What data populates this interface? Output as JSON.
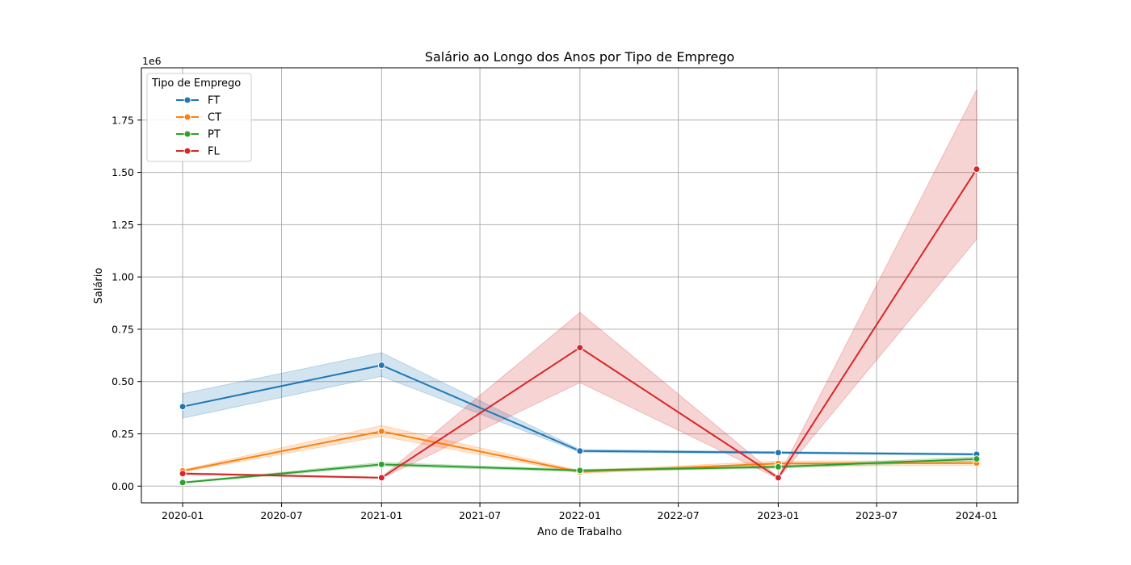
{
  "chart_data": {
    "type": "line",
    "title": "Salário ao Longo dos Anos por Tipo de Emprego",
    "xlabel": "Ano de Trabalho",
    "ylabel": "Salário",
    "y_offset_label": "1e6",
    "x": [
      "2020-01-01",
      "2021-01-01",
      "2022-01-01",
      "2023-01-01",
      "2024-01-01"
    ],
    "x_ticks": [
      "2020-01",
      "2020-07",
      "2021-01",
      "2021-07",
      "2022-01",
      "2022-07",
      "2023-01",
      "2023-07",
      "2024-01"
    ],
    "y_ticks": [
      "0.00",
      "0.25",
      "0.50",
      "0.75",
      "1.00",
      "1.25",
      "1.50",
      "1.75"
    ],
    "ylim": [
      -80000,
      2000000
    ],
    "xlim": [
      "2019-10-17",
      "2024-03-17"
    ],
    "grid": true,
    "legend": {
      "title": "Tipo de Emprego",
      "placement": "top-left"
    },
    "series": [
      {
        "name": "FT",
        "color": "#1f77b4",
        "values": [
          380000,
          578000,
          168000,
          160000,
          152000
        ],
        "ci_low": [
          325000,
          525000,
          162000,
          156000,
          148000
        ],
        "ci_high": [
          442000,
          638000,
          175000,
          165000,
          157000
        ]
      },
      {
        "name": "CT",
        "color": "#ff7f0e",
        "values": [
          73000,
          262000,
          68000,
          108000,
          110000
        ],
        "ci_low": [
          68000,
          238000,
          62000,
          95000,
          100000
        ],
        "ci_high": [
          78000,
          290000,
          74000,
          120000,
          120000
        ]
      },
      {
        "name": "PT",
        "color": "#2ca02c",
        "values": [
          17000,
          104000,
          75000,
          92000,
          130000
        ],
        "ci_low": [
          14000,
          96000,
          70000,
          86000,
          120000
        ],
        "ci_high": [
          20000,
          113000,
          80000,
          98000,
          140000
        ]
      },
      {
        "name": "FL",
        "color": "#d62728",
        "values": [
          60000,
          40000,
          662000,
          40000,
          1515000
        ],
        "ci_low": [
          56000,
          37000,
          495000,
          36000,
          1180000
        ],
        "ci_high": [
          64000,
          43000,
          830000,
          44000,
          1895000
        ]
      }
    ]
  }
}
